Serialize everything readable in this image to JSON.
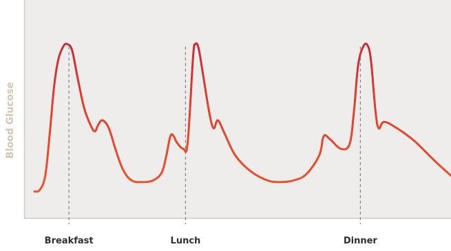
{
  "chart_data": {
    "type": "line",
    "title": "",
    "xlabel": "",
    "ylabel": "Blood Glucose",
    "x_ticks": [
      {
        "label": "Breakfast",
        "x": 1.6
      },
      {
        "label": "Lunch",
        "x": 7.0
      },
      {
        "label": "Dinner",
        "x": 15.1
      }
    ],
    "grid": false,
    "xlim": [
      0,
      19.3
    ],
    "ylim": [
      0,
      100
    ],
    "series": [
      {
        "points": [
          [
            0,
            5
          ],
          [
            0.25,
            6
          ],
          [
            0.5,
            15
          ],
          [
            0.7,
            40
          ],
          [
            0.9,
            70
          ],
          [
            1.1,
            88
          ],
          [
            1.35,
            97
          ],
          [
            1.55,
            98
          ],
          [
            1.75,
            94
          ],
          [
            2.0,
            77
          ],
          [
            2.3,
            58
          ],
          [
            2.6,
            47
          ],
          [
            2.8,
            43
          ],
          [
            2.95,
            47
          ],
          [
            3.15,
            50
          ],
          [
            3.45,
            45
          ],
          [
            3.75,
            32
          ],
          [
            4.1,
            19
          ],
          [
            4.5,
            12
          ],
          [
            5.0,
            11
          ],
          [
            5.5,
            12
          ],
          [
            5.9,
            17
          ],
          [
            6.1,
            27
          ],
          [
            6.3,
            40
          ],
          [
            6.45,
            40
          ],
          [
            6.6,
            36
          ],
          [
            6.9,
            32
          ],
          [
            7.1,
            36
          ],
          [
            7.35,
            90
          ],
          [
            7.45,
            98
          ],
          [
            7.6,
            96
          ],
          [
            7.8,
            80
          ],
          [
            8.1,
            55
          ],
          [
            8.3,
            45
          ],
          [
            8.5,
            50
          ],
          [
            8.8,
            42
          ],
          [
            9.3,
            28
          ],
          [
            10.0,
            18
          ],
          [
            10.8,
            12
          ],
          [
            11.4,
            11
          ],
          [
            12.0,
            12
          ],
          [
            12.6,
            16
          ],
          [
            13.2,
            28
          ],
          [
            13.4,
            40
          ],
          [
            13.7,
            38
          ],
          [
            14.2,
            32
          ],
          [
            14.6,
            35
          ],
          [
            14.8,
            55
          ],
          [
            15.0,
            85
          ],
          [
            15.25,
            97
          ],
          [
            15.45,
            97
          ],
          [
            15.6,
            87
          ],
          [
            15.8,
            56
          ],
          [
            15.95,
            45
          ],
          [
            16.2,
            49
          ],
          [
            16.8,
            45
          ],
          [
            17.6,
            37
          ],
          [
            18.5,
            25
          ],
          [
            19.3,
            15
          ]
        ]
      }
    ],
    "line_colors": {
      "low": "#f0532b",
      "high": "#c62b36"
    },
    "background": "#efedeb",
    "axis_color": "#cfc9c2",
    "dashed_line_color": "#7f7f7f"
  }
}
